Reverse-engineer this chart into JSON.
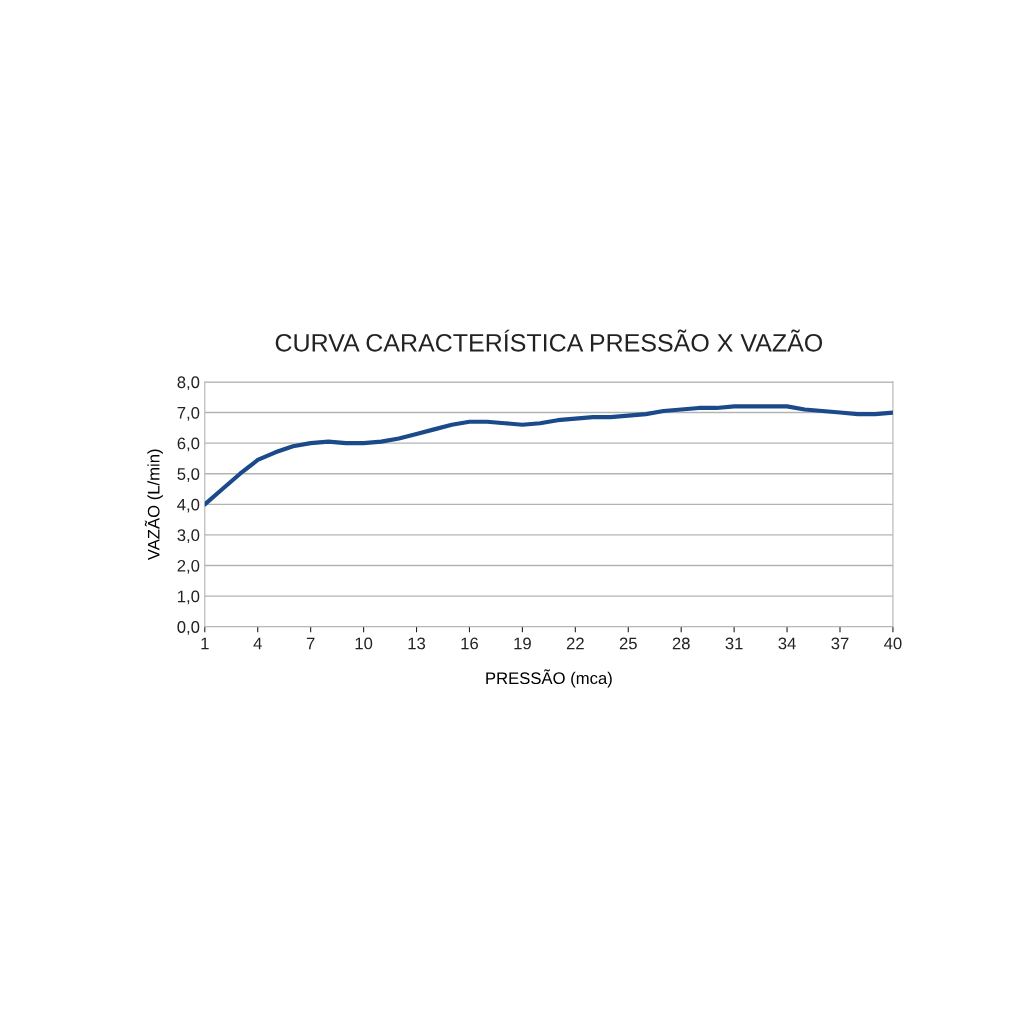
{
  "chart_data": {
    "type": "line",
    "title": "CURVA CARACTERÍSTICA PRESSÃO X VAZÃO",
    "xlabel": "PRESSÃO (mca)",
    "ylabel": "VAZÃO (L/min)",
    "x": [
      1,
      2,
      3,
      4,
      5,
      6,
      7,
      8,
      9,
      10,
      11,
      12,
      13,
      14,
      15,
      16,
      17,
      18,
      19,
      20,
      21,
      22,
      23,
      24,
      25,
      26,
      27,
      28,
      29,
      30,
      31,
      32,
      33,
      34,
      35,
      36,
      37,
      38,
      39,
      40
    ],
    "series": [
      {
        "color": "#1b4a8a",
        "values": [
          4.0,
          4.5,
          5.0,
          5.45,
          5.7,
          5.9,
          6.0,
          6.05,
          6.0,
          6.0,
          6.05,
          6.15,
          6.3,
          6.45,
          6.6,
          6.7,
          6.7,
          6.65,
          6.6,
          6.65,
          6.75,
          6.8,
          6.85,
          6.85,
          6.9,
          6.95,
          7.05,
          7.1,
          7.15,
          7.15,
          7.2,
          7.2,
          7.2,
          7.2,
          7.1,
          7.05,
          7.0,
          6.95,
          6.95,
          7.0
        ]
      }
    ],
    "xlim": [
      1,
      40
    ],
    "xticks": [
      1,
      4,
      7,
      10,
      13,
      16,
      19,
      22,
      25,
      28,
      31,
      34,
      37,
      40
    ],
    "ylim": [
      0,
      8
    ],
    "yticks": [
      {
        "value": 0,
        "label": "0,0"
      },
      {
        "value": 1,
        "label": "1,0"
      },
      {
        "value": 2,
        "label": "2,0"
      },
      {
        "value": 3,
        "label": "3,0"
      },
      {
        "value": 4,
        "label": "4,0"
      },
      {
        "value": 5,
        "label": "5,0"
      },
      {
        "value": 6,
        "label": "6,0"
      },
      {
        "value": 7,
        "label": "7,0"
      },
      {
        "value": 8,
        "label": "8,0"
      }
    ],
    "grid": "y",
    "marker": "none",
    "line_style": "solid",
    "legend": false
  }
}
